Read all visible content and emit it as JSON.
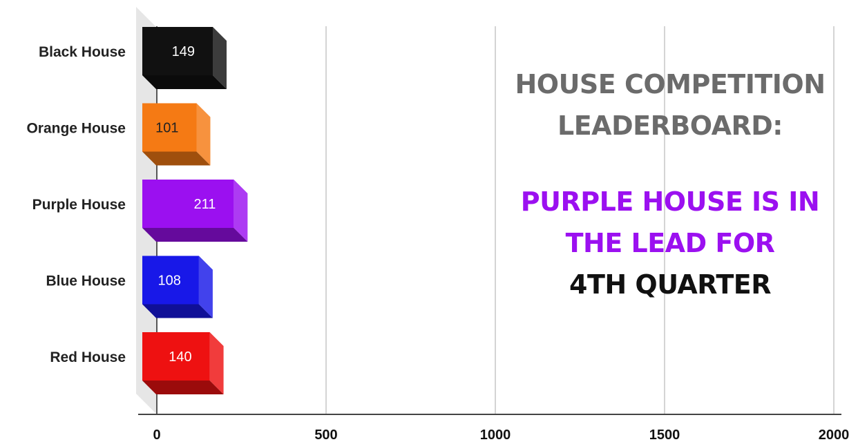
{
  "chart_data": {
    "type": "bar",
    "orientation": "horizontal",
    "categories": [
      "Black House",
      "Orange House",
      "Purple House",
      "Blue House",
      "Red House"
    ],
    "values": [
      149,
      101,
      211,
      108,
      140
    ],
    "colors": [
      "#111111",
      "#f57a14",
      "#9b10f0",
      "#1818e8",
      "#ee1111"
    ],
    "value_label_colors": [
      "#ffffff",
      "#222222",
      "#ffffff",
      "#ffffff",
      "#ffffff"
    ],
    "xlim": [
      0,
      2000
    ],
    "xticks": [
      0,
      500,
      1000,
      1500,
      2000
    ],
    "grid": true,
    "legend": "none",
    "style": "3d"
  },
  "headline": {
    "title_line1": "House Competition",
    "title_line2": "Leaderboard:",
    "lead_line1": "Purple House is in",
    "lead_line2": "the lead for",
    "quarter_line": "4th Quarter"
  }
}
